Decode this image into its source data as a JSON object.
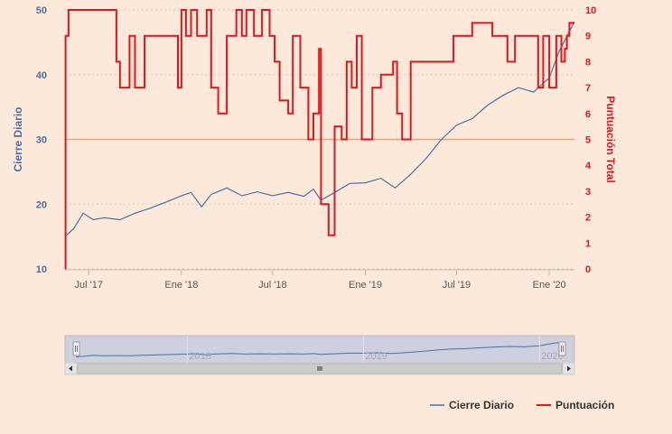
{
  "chart_data": {
    "type": "line",
    "x_tick_labels": [
      "Jul '17",
      "Ene '18",
      "Jul '18",
      "Ene '19",
      "Jul '19",
      "Ene '20"
    ],
    "x_tick_dates": [
      "2017-07-01",
      "2018-01-01",
      "2018-07-01",
      "2019-01-01",
      "2019-07-01",
      "2020-01-01"
    ],
    "x_range": [
      "2017-05-15",
      "2020-02-20"
    ],
    "left_axis": {
      "label": "Cierre Diario",
      "ylim": [
        10,
        50
      ],
      "ticks": [
        10,
        20,
        30,
        40,
        50
      ],
      "color": "#4a6fa5"
    },
    "right_axis": {
      "label": "Puntuación Total",
      "ylim": [
        0,
        10
      ],
      "ticks": [
        0,
        1,
        2,
        3,
        4,
        5,
        6,
        7,
        8,
        9,
        10
      ],
      "color": "#e0161e"
    },
    "plot_line": {
      "axis": "right",
      "value": 5.0,
      "color": "#e8a77a"
    },
    "series": [
      {
        "name": "Cierre Diario",
        "axis": "left",
        "color": "#4a6fa5",
        "points": [
          [
            "2017-05-15",
            15.0
          ],
          [
            "2017-06-01",
            16.2
          ],
          [
            "2017-06-20",
            18.6
          ],
          [
            "2017-07-10",
            17.6
          ],
          [
            "2017-08-01",
            17.9
          ],
          [
            "2017-09-01",
            17.6
          ],
          [
            "2017-10-01",
            18.6
          ],
          [
            "2017-11-01",
            19.4
          ],
          [
            "2017-12-01",
            20.3
          ],
          [
            "2018-01-01",
            21.3
          ],
          [
            "2018-01-20",
            21.8
          ],
          [
            "2018-02-10",
            19.6
          ],
          [
            "2018-03-01",
            21.5
          ],
          [
            "2018-04-01",
            22.5
          ],
          [
            "2018-05-01",
            21.3
          ],
          [
            "2018-06-01",
            21.9
          ],
          [
            "2018-07-01",
            21.3
          ],
          [
            "2018-08-01",
            21.8
          ],
          [
            "2018-09-01",
            21.2
          ],
          [
            "2018-09-20",
            22.3
          ],
          [
            "2018-10-05",
            20.6
          ],
          [
            "2018-11-01",
            21.8
          ],
          [
            "2018-12-01",
            23.2
          ],
          [
            "2019-01-01",
            23.3
          ],
          [
            "2019-02-01",
            24.0
          ],
          [
            "2019-03-01",
            22.5
          ],
          [
            "2019-04-01",
            24.6
          ],
          [
            "2019-05-01",
            27.0
          ],
          [
            "2019-06-01",
            30.0
          ],
          [
            "2019-07-01",
            32.2
          ],
          [
            "2019-08-01",
            33.2
          ],
          [
            "2019-09-01",
            35.3
          ],
          [
            "2019-10-01",
            36.8
          ],
          [
            "2019-11-01",
            38.0
          ],
          [
            "2019-12-01",
            37.3
          ],
          [
            "2020-01-01",
            39.5
          ],
          [
            "2020-01-20",
            43.5
          ],
          [
            "2020-02-20",
            48.2
          ]
        ]
      },
      {
        "name": "Puntuación",
        "axis": "right",
        "color": "#e0161e",
        "step": true,
        "points": [
          [
            "2017-05-15",
            0
          ],
          [
            "2017-05-16",
            9
          ],
          [
            "2017-05-22",
            10
          ],
          [
            "2017-08-25",
            8
          ],
          [
            "2017-09-01",
            7
          ],
          [
            "2017-09-20",
            9
          ],
          [
            "2017-10-01",
            7
          ],
          [
            "2017-10-20",
            9
          ],
          [
            "2017-12-25",
            7
          ],
          [
            "2018-01-01",
            10
          ],
          [
            "2018-01-10",
            9
          ],
          [
            "2018-01-20",
            10
          ],
          [
            "2018-02-01",
            9
          ],
          [
            "2018-02-20",
            10
          ],
          [
            "2018-03-01",
            7
          ],
          [
            "2018-03-15",
            6
          ],
          [
            "2018-04-01",
            9
          ],
          [
            "2018-04-20",
            10
          ],
          [
            "2018-05-01",
            9
          ],
          [
            "2018-05-10",
            10
          ],
          [
            "2018-05-25",
            9
          ],
          [
            "2018-06-10",
            10
          ],
          [
            "2018-06-25",
            9
          ],
          [
            "2018-07-05",
            8
          ],
          [
            "2018-07-15",
            6.5
          ],
          [
            "2018-08-01",
            6
          ],
          [
            "2018-08-10",
            9
          ],
          [
            "2018-08-25",
            7
          ],
          [
            "2018-09-10",
            5
          ],
          [
            "2018-09-20",
            6
          ],
          [
            "2018-10-01",
            8.5
          ],
          [
            "2018-10-05",
            2.5
          ],
          [
            "2018-10-20",
            1.3
          ],
          [
            "2018-11-01",
            5.5
          ],
          [
            "2018-11-15",
            5
          ],
          [
            "2018-11-25",
            8
          ],
          [
            "2018-12-05",
            7
          ],
          [
            "2018-12-15",
            9
          ],
          [
            "2018-12-25",
            5
          ],
          [
            "2019-01-15",
            7
          ],
          [
            "2019-02-01",
            7.5
          ],
          [
            "2019-02-25",
            8
          ],
          [
            "2019-03-05",
            6
          ],
          [
            "2019-03-15",
            5
          ],
          [
            "2019-04-01",
            8
          ],
          [
            "2019-06-25",
            9
          ],
          [
            "2019-08-01",
            9.5
          ],
          [
            "2019-09-10",
            9
          ],
          [
            "2019-10-10",
            8
          ],
          [
            "2019-10-25",
            9
          ],
          [
            "2019-12-10",
            7
          ],
          [
            "2019-12-20",
            9
          ],
          [
            "2020-01-01",
            7
          ],
          [
            "2020-01-15",
            9
          ],
          [
            "2020-01-25",
            8
          ],
          [
            "2020-02-01",
            8.5
          ],
          [
            "2020-02-05",
            9
          ],
          [
            "2020-02-10",
            9.5
          ],
          [
            "2020-02-20",
            9.5
          ]
        ]
      }
    ],
    "navigator": {
      "tick_labels": [
        "2018",
        "2019",
        "2020"
      ],
      "tick_dates": [
        "2018-01-01",
        "2019-01-01",
        "2020-01-01"
      ]
    },
    "legend": {
      "placement": "bottom-right",
      "items": [
        "Cierre Diario",
        "Puntuación"
      ]
    },
    "grid": {
      "horizontal": true,
      "style": "dotted"
    }
  }
}
